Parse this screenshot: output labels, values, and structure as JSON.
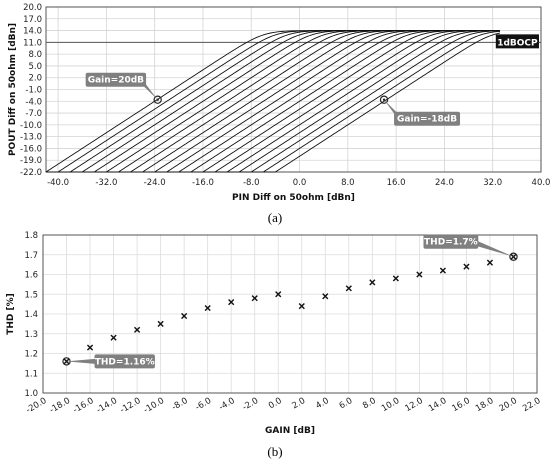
{
  "chart_data": [
    {
      "type": "line",
      "xlabel": "PIN Diff on 50ohm [dBn]",
      "ylabel": "POUT Diff on 50ohm [dBn]",
      "xlim": [
        -42.0,
        40.0
      ],
      "ylim": [
        -22.0,
        20.0
      ],
      "xticks": [
        "-40.0",
        "-32.0",
        "-24.0",
        "-16.0",
        "-8.0",
        "0.0",
        "8.0",
        "16.0",
        "24.0",
        "32.0",
        "40.0"
      ],
      "yticks": [
        "20.0",
        "17.0",
        "14.0",
        "11.0",
        "8.0",
        "5.0",
        "2.0",
        "-1.0",
        "-4.0",
        "-7.0",
        "-10.0",
        "-13.0",
        "-16.0",
        "-19.0",
        "-22.0"
      ],
      "grid": true,
      "gains_db": [
        20,
        18,
        16,
        14,
        12,
        10,
        8,
        6,
        4,
        2,
        0,
        -2,
        -4,
        -6,
        -8,
        -10,
        -12,
        -14,
        -16,
        -18
      ],
      "saturation_level": 14.0,
      "reference_line": {
        "label": "1dBOCP",
        "y": 11.0
      },
      "annotations": [
        {
          "label": "Gain=20dB",
          "x": -23.5,
          "y": -3.6
        },
        {
          "label": "Gain=-18dB",
          "x": 14.0,
          "y": -3.6
        }
      ],
      "caption": "(a)"
    },
    {
      "type": "scatter",
      "xlabel": "GAIN [dB]",
      "ylabel": "THD [%]",
      "xlim": [
        -20.0,
        22.0
      ],
      "ylim": [
        1.0,
        1.8
      ],
      "xticks": [
        "-20.0",
        "-18.0",
        "-16.0",
        "-14.0",
        "-12.0",
        "-10.0",
        "-8.0",
        "-6.0",
        "-4.0",
        "-2.0",
        "0.0",
        "2.0",
        "4.0",
        "6.0",
        "8.0",
        "10.0",
        "12.0",
        "14.0",
        "16.0",
        "18.0",
        "20.0",
        "22.0"
      ],
      "yticks": [
        "1.8",
        "1.7",
        "1.6",
        "1.5",
        "1.4",
        "1.3",
        "1.2",
        "1.1",
        "1.0"
      ],
      "grid": true,
      "x": [
        -18,
        -16,
        -14,
        -12,
        -10,
        -8,
        -6,
        -4,
        -2,
        0,
        2,
        4,
        6,
        8,
        10,
        12,
        14,
        16,
        18,
        20
      ],
      "y": [
        1.16,
        1.23,
        1.28,
        1.32,
        1.35,
        1.39,
        1.43,
        1.46,
        1.48,
        1.5,
        1.44,
        1.49,
        1.53,
        1.56,
        1.58,
        1.6,
        1.62,
        1.64,
        1.66,
        1.69
      ],
      "annotations": [
        {
          "label": "THD=1.16%",
          "x": -18,
          "y": 1.16
        },
        {
          "label": "THD=1.7%",
          "x": 20,
          "y": 1.69
        }
      ],
      "caption": "(b)"
    }
  ]
}
